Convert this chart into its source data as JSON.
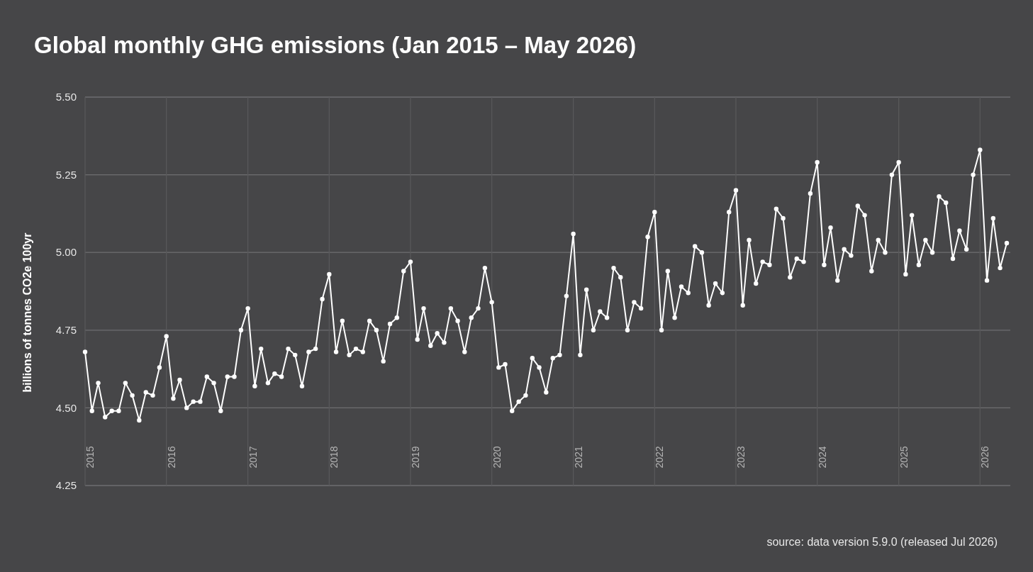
{
  "chart_data": {
    "type": "line",
    "title": "Global monthly GHG emissions (Jan 2015 – May 2026)",
    "ylabel": "billions of tonnes CO2e 100yr",
    "annotations": [
      "source: data version 5.9.0 (released Jul 2026)"
    ],
    "x": [
      "2015-01",
      "2015-02",
      "2015-03",
      "2015-04",
      "2015-05",
      "2015-06",
      "2015-07",
      "2015-08",
      "2015-09",
      "2015-10",
      "2015-11",
      "2015-12",
      "2016-01",
      "2016-02",
      "2016-03",
      "2016-04",
      "2016-05",
      "2016-06",
      "2016-07",
      "2016-08",
      "2016-09",
      "2016-10",
      "2016-11",
      "2016-12",
      "2017-01",
      "2017-02",
      "2017-03",
      "2017-04",
      "2017-05",
      "2017-06",
      "2017-07",
      "2017-08",
      "2017-09",
      "2017-10",
      "2017-11",
      "2017-12",
      "2018-01",
      "2018-02",
      "2018-03",
      "2018-04",
      "2018-05",
      "2018-06",
      "2018-07",
      "2018-08",
      "2018-09",
      "2018-10",
      "2018-11",
      "2018-12",
      "2019-01",
      "2019-02",
      "2019-03",
      "2019-04",
      "2019-05",
      "2019-06",
      "2019-07",
      "2019-08",
      "2019-09",
      "2019-10",
      "2019-11",
      "2019-12",
      "2020-01",
      "2020-02",
      "2020-03",
      "2020-04",
      "2020-05",
      "2020-06",
      "2020-07",
      "2020-08",
      "2020-09",
      "2020-10",
      "2020-11",
      "2020-12",
      "2021-01",
      "2021-02",
      "2021-03",
      "2021-04",
      "2021-05",
      "2021-06",
      "2021-07",
      "2021-08",
      "2021-09",
      "2021-10",
      "2021-11",
      "2021-12",
      "2022-01",
      "2022-02",
      "2022-03",
      "2022-04",
      "2022-05",
      "2022-06",
      "2022-07",
      "2022-08",
      "2022-09",
      "2022-10",
      "2022-11",
      "2022-12",
      "2023-01",
      "2023-02",
      "2023-03",
      "2023-04",
      "2023-05",
      "2023-06",
      "2023-07",
      "2023-08",
      "2023-09",
      "2023-10",
      "2023-11",
      "2023-12",
      "2024-01",
      "2024-02",
      "2024-03",
      "2024-04",
      "2024-05",
      "2024-06",
      "2024-07",
      "2024-08",
      "2024-09",
      "2024-10",
      "2024-11",
      "2024-12",
      "2025-01",
      "2025-02",
      "2025-03",
      "2025-04",
      "2025-05",
      "2025-06",
      "2025-07",
      "2025-08",
      "2025-09",
      "2025-10",
      "2025-11",
      "2025-12",
      "2026-01",
      "2026-02",
      "2026-03",
      "2026-04",
      "2026-05"
    ],
    "series": [
      {
        "color": "#ffffff",
        "values": [
          4.68,
          4.49,
          4.58,
          4.47,
          4.49,
          4.49,
          4.58,
          4.54,
          4.46,
          4.55,
          4.54,
          4.63,
          4.73,
          4.53,
          4.59,
          4.5,
          4.52,
          4.52,
          4.6,
          4.58,
          4.49,
          4.6,
          4.6,
          4.75,
          4.82,
          4.57,
          4.69,
          4.58,
          4.61,
          4.6,
          4.69,
          4.67,
          4.57,
          4.68,
          4.69,
          4.85,
          4.93,
          4.68,
          4.78,
          4.67,
          4.69,
          4.68,
          4.78,
          4.75,
          4.65,
          4.77,
          4.79,
          4.94,
          4.97,
          4.72,
          4.82,
          4.7,
          4.74,
          4.71,
          4.82,
          4.78,
          4.68,
          4.79,
          4.82,
          4.95,
          4.84,
          4.63,
          4.64,
          4.49,
          4.52,
          4.54,
          4.66,
          4.63,
          4.55,
          4.66,
          4.67,
          4.86,
          5.06,
          4.67,
          4.88,
          4.75,
          4.81,
          4.79,
          4.95,
          4.92,
          4.75,
          4.84,
          4.82,
          5.05,
          5.13,
          4.75,
          4.94,
          4.79,
          4.89,
          4.87,
          5.02,
          5.0,
          4.83,
          4.9,
          4.87,
          5.13,
          5.2,
          4.83,
          5.04,
          4.9,
          4.97,
          4.96,
          5.14,
          5.11,
          4.92,
          4.98,
          4.97,
          5.19,
          5.29,
          4.96,
          5.08,
          4.91,
          5.01,
          4.99,
          5.15,
          5.12,
          4.94,
          5.04,
          5.0,
          5.25,
          5.29,
          4.93,
          5.12,
          4.96,
          5.04,
          5.0,
          5.18,
          5.16,
          4.98,
          5.07,
          5.01,
          5.25,
          5.33,
          4.91,
          5.11,
          4.95,
          5.03
        ]
      }
    ],
    "xlim": [
      "2015-01",
      "2026-05"
    ],
    "xticks": [
      {
        "value": "2015-01",
        "label": "2015"
      },
      {
        "value": "2016-01",
        "label": "2016"
      },
      {
        "value": "2017-01",
        "label": "2017"
      },
      {
        "value": "2018-01",
        "label": "2018"
      },
      {
        "value": "2019-01",
        "label": "2019"
      },
      {
        "value": "2020-01",
        "label": "2020"
      },
      {
        "value": "2021-01",
        "label": "2021"
      },
      {
        "value": "2022-01",
        "label": "2022"
      },
      {
        "value": "2023-01",
        "label": "2023"
      },
      {
        "value": "2024-01",
        "label": "2024"
      },
      {
        "value": "2025-01",
        "label": "2025"
      },
      {
        "value": "2026-01",
        "label": "2026"
      }
    ],
    "ylim": [
      4.25,
      5.5
    ],
    "yticks": [
      {
        "value": 4.25,
        "label": "4.25"
      },
      {
        "value": 4.5,
        "label": "4.50"
      },
      {
        "value": 4.75,
        "label": "4.75"
      },
      {
        "value": 5,
        "label": "5.00"
      },
      {
        "value": 5.25,
        "label": "5.25"
      },
      {
        "value": 5.5,
        "label": "5.50"
      }
    ],
    "grid": true,
    "marker": "circle",
    "line_style": "solid"
  }
}
